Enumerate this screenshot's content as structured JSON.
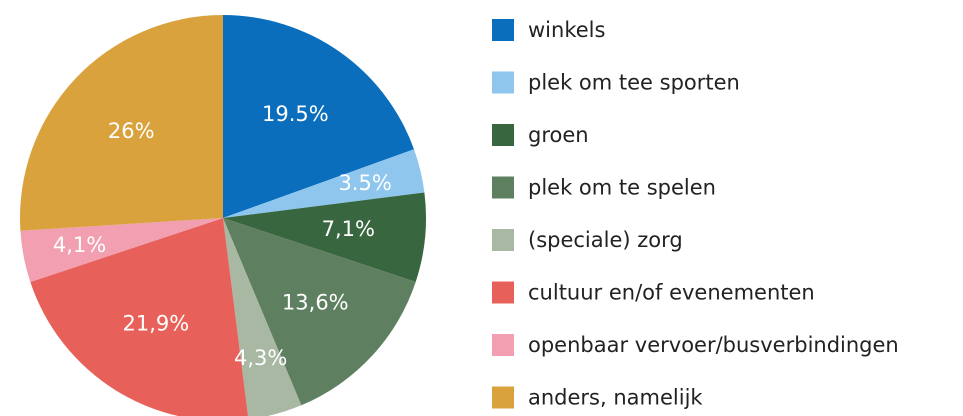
{
  "chart_data": {
    "type": "pie",
    "categories": [
      "winkels",
      "plek om tee sporten",
      "groen",
      "plek om te spelen",
      "(speciale) zorg",
      "cultuur en/of evenementen",
      "openbaar vervoer/busverbindingen",
      "anders, namelijk"
    ],
    "values": [
      19.5,
      3.5,
      7.1,
      13.6,
      4.3,
      21.9,
      4.1,
      26
    ],
    "value_labels": [
      "19.5%",
      "3.5%",
      "7,1%",
      "13,6%",
      "4,3%",
      "21,9%",
      "4,1%",
      "26%"
    ],
    "colors": [
      "#0a6ebd",
      "#8ec6ee",
      "#37663f",
      "#5f8060",
      "#a9b8a3",
      "#e8605a",
      "#f29fb1",
      "#d9a23d"
    ]
  }
}
